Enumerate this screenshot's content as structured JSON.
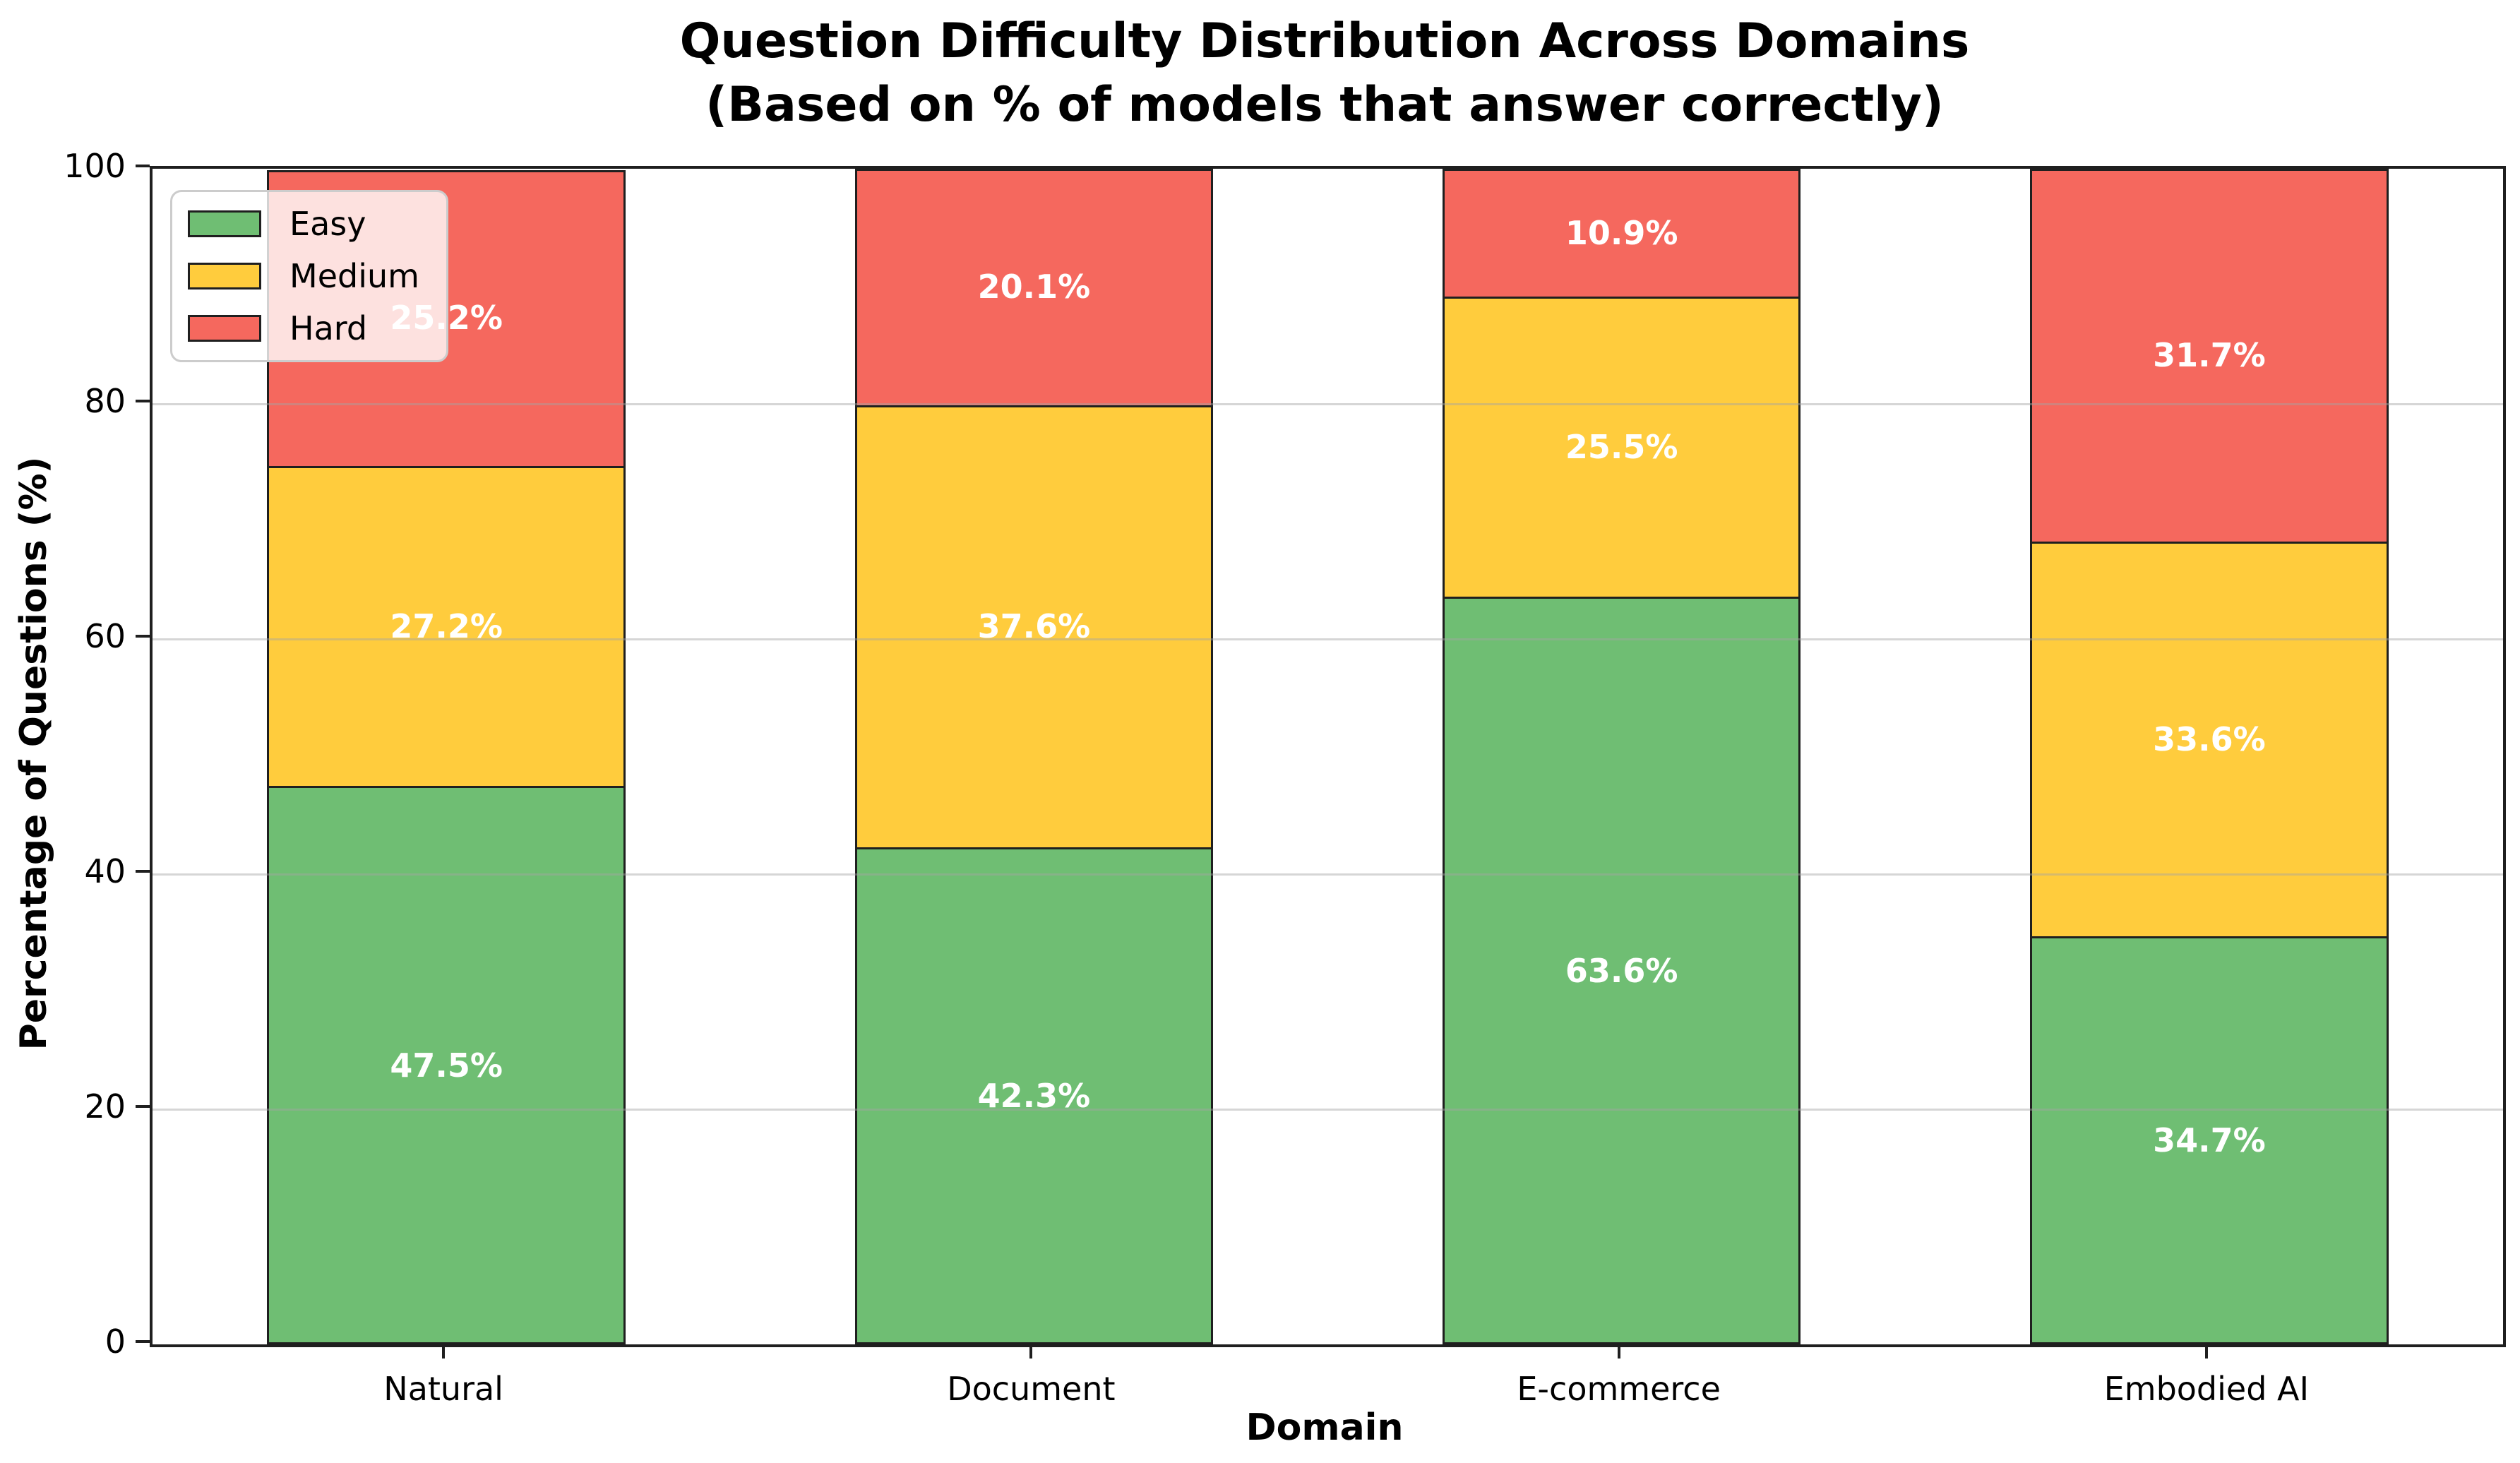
{
  "chart_data": {
    "type": "bar",
    "stacked": true,
    "title": "Question Difficulty Distribution Across Domains",
    "subtitle": "(Based on % of models that answer correctly)",
    "xlabel": "Domain",
    "ylabel": "Percentage of Questions (%)",
    "categories": [
      "Natural",
      "Document",
      "E-commerce",
      "Embodied AI"
    ],
    "series": [
      {
        "name": "Easy",
        "color": "#6fbe73",
        "values": [
          47.5,
          42.3,
          63.6,
          34.7
        ]
      },
      {
        "name": "Medium",
        "color": "#ffcc3d",
        "values": [
          27.2,
          37.6,
          25.5,
          33.6
        ]
      },
      {
        "name": "Hard",
        "color": "#f5685e",
        "values": [
          25.2,
          20.1,
          10.9,
          31.7
        ]
      }
    ],
    "value_labels": [
      [
        "47.5%",
        "42.3%",
        "63.6%",
        "34.7%"
      ],
      [
        "27.2%",
        "37.6%",
        "25.5%",
        "33.6%"
      ],
      [
        "25.2%",
        "20.1%",
        "10.9%",
        "31.7%"
      ]
    ],
    "value_label_color": "#ffffff",
    "bar_edge_color": "#1f1f1f",
    "ylim": [
      0,
      100
    ],
    "yticks": [
      "0",
      "20",
      "40",
      "60",
      "80",
      "100"
    ],
    "grid": "horizontal",
    "gridline_color": "#e3e3e3",
    "legend_position": "upper-left",
    "legend_items": [
      "Easy",
      "Medium",
      "Hard"
    ]
  }
}
